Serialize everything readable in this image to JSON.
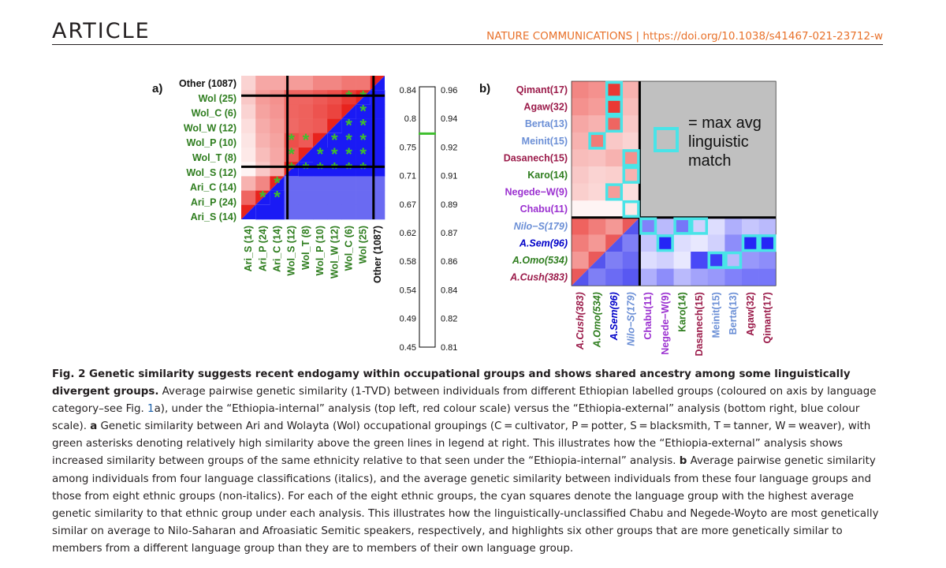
{
  "header": {
    "section": "ARTICLE",
    "journal": "NATURE COMMUNICATIONS | https://doi.org/10.1038/s41467-021-23712-w"
  },
  "colors": {
    "wol_green": "#2e7d1e",
    "ari_green": "#2e7d1e",
    "nilo_blue": "#6b8fd6",
    "cush_maroon": "#9b1b4a",
    "sem_blue": "#0000c8",
    "omo_green": "#2e7d1e",
    "berta_blue": "#6b8fd6",
    "purple": "#9b30d0",
    "cyan": "#49e4e8",
    "legend_green": "#3fbf2e"
  },
  "chart_data": [
    {
      "type": "heatmap",
      "panel_label": "a)",
      "row_labels": [
        "Other (1087)",
        "Wol (25)",
        "Wol_C (6)",
        "Wol_W (12)",
        "Wol_P (10)",
        "Wol_T (8)",
        "Wol_S (12)",
        "Ari_C (14)",
        "Ari_P (24)",
        "Ari_S (14)"
      ],
      "col_labels": [
        "Ari_S (14)",
        "Ari_P (24)",
        "Ari_C (14)",
        "Wol_S (12)",
        "Wol_T (8)",
        "Wol_P (10)",
        "Wol_W (12)",
        "Wol_C (6)",
        "Wol (25)",
        "Other (1087)"
      ],
      "internal_scale": [
        "0.84",
        "0.8",
        "0.75",
        "0.71",
        "0.67",
        "0.62",
        "0.58",
        "0.54",
        "0.49",
        "0.45"
      ],
      "external_scale": [
        "0.96",
        "0.94",
        "0.92",
        "0.91",
        "0.89",
        "0.87",
        "0.86",
        "0.84",
        "0.82",
        "0.81"
      ],
      "legend_threshold_fraction": 0.18
    },
    {
      "type": "heatmap",
      "panel_label": "b)",
      "row_labels": [
        "Qimant(17)",
        "Agaw(32)",
        "Berta(13)",
        "Meinit(15)",
        "Dasanech(15)",
        "Karo(14)",
        "Negede−W(9)",
        "Chabu(11)",
        "Nilo−S(179)",
        "A.Sem(96)",
        "A.Omo(534)",
        "A.Cush(383)"
      ],
      "col_labels": [
        "A.Cush(383)",
        "A.Omo(534)",
        "A.Sem(96)",
        "Nilo−S(179)",
        "Chabu(11)",
        "Negede−W(9)",
        "Karo(14)",
        "Dasanech(15)",
        "Meinit(15)",
        "Berta(13)",
        "Agaw(32)",
        "Qimant(17)"
      ],
      "legend_text": [
        "= max avg",
        "linguistic",
        "match"
      ]
    }
  ],
  "caption": {
    "fig_label": "Fig. 2 Genetic similarity suggests recent endogamy within occupational groups and shows shared ancestry among some linguistically divergent groups.",
    "p1": " Average pairwise genetic similarity (1-TVD) between individuals from different Ethiopian labelled groups (coloured on axis by language category–see Fig. ",
    "fig_ref": "1",
    "p2": "a), under the “Ethiopia-internal” analysis (top left, red colour scale) versus the “Ethiopia-external” analysis (bottom right, blue colour scale). ",
    "a_label": "a",
    "p3": " Genetic similarity between Ari and Wolayta (Wol) occupational groupings (C = cultivator, P = potter, S = blacksmith, T = tanner, W = weaver), with green asterisks denoting relatively high similarity above the green lines in legend at right. This illustrates how the “Ethiopia-external” analysis shows increased similarity between groups of the same ethnicity relative to that seen under the “Ethiopia-internal” analysis. ",
    "b_label": "b",
    "p4": " Average pairwise genetic similarity among individuals from four language classifications (italics), and the average genetic similarity between individuals from these four language groups and those from eight ethnic groups (non-italics). For each of the eight ethnic groups, the cyan squares denote the language group with the highest average genetic similarity to that ethnic group under each analysis. This illustrates how the linguistically-unclassified Chabu and Negede-Woyto are most genetically similar on average to Nilo-Saharan and Afroasiatic Semitic speakers, respectively, and highlights six other groups that are more genetically similar to members from a different language group than they are to members of their own language group."
  }
}
